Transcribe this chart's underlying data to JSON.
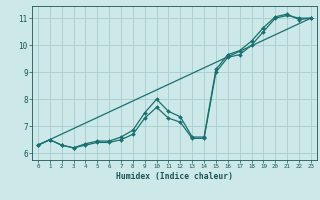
{
  "xlabel": "Humidex (Indice chaleur)",
  "bg_color": "#cce8e8",
  "grid_color": "#aacccc",
  "line_color": "#1a7070",
  "xlim": [
    -0.5,
    23.5
  ],
  "ylim": [
    5.75,
    11.45
  ],
  "xticks": [
    0,
    1,
    2,
    3,
    4,
    5,
    6,
    7,
    8,
    9,
    10,
    11,
    12,
    13,
    14,
    15,
    16,
    17,
    18,
    19,
    20,
    21,
    22,
    23
  ],
  "yticks": [
    6,
    7,
    8,
    9,
    10,
    11
  ],
  "line1_x": [
    0,
    1,
    2,
    3,
    4,
    5,
    6,
    7,
    8,
    9,
    10,
    11,
    12,
    13,
    14,
    15,
    16,
    17,
    18,
    19,
    20,
    21,
    22,
    23
  ],
  "line1_y": [
    6.3,
    6.5,
    6.3,
    6.2,
    6.3,
    6.4,
    6.4,
    6.5,
    6.7,
    7.3,
    7.7,
    7.3,
    7.15,
    6.55,
    6.55,
    9.0,
    9.55,
    9.65,
    10.0,
    10.5,
    11.0,
    11.1,
    11.0,
    11.0
  ],
  "line2_x": [
    0,
    1,
    2,
    3,
    4,
    5,
    6,
    7,
    8,
    9,
    10,
    11,
    12,
    13,
    14,
    15,
    16,
    17,
    18,
    19,
    20,
    21,
    22,
    23
  ],
  "line2_y": [
    6.3,
    6.5,
    6.3,
    6.2,
    6.35,
    6.45,
    6.45,
    6.6,
    6.85,
    7.5,
    8.0,
    7.55,
    7.35,
    6.6,
    6.6,
    9.1,
    9.65,
    9.8,
    10.15,
    10.65,
    11.05,
    11.15,
    10.95,
    11.0
  ],
  "line3_x": [
    0,
    23
  ],
  "line3_y": [
    6.3,
    11.0
  ]
}
